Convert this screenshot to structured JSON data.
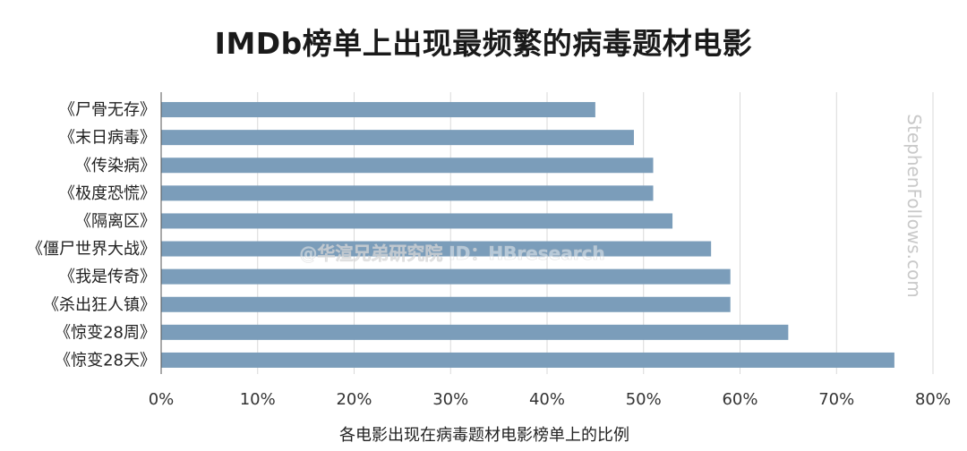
{
  "chart_data": {
    "type": "bar",
    "orientation": "horizontal",
    "title": "IMDb榜单上出现最频繁的病毒题材电影",
    "xlabel": "各电影出现在病毒题材电影榜单上的比例",
    "ylabel": "",
    "categories": [
      "《尸骨无存》",
      "《末日病毒》",
      "《传染病》",
      "《极度恐慌》",
      "《隔离区》",
      "《僵尸世界大战》",
      "《我是传奇》",
      "《杀出狂人镇》",
      "《惊变28周》",
      "《惊变28天》"
    ],
    "values": [
      45,
      49,
      51,
      51,
      53,
      57,
      59,
      59,
      65,
      76
    ],
    "xlim": [
      0,
      80
    ],
    "xticks": [
      0,
      10,
      20,
      30,
      40,
      50,
      60,
      70,
      80
    ],
    "xtick_labels": [
      "0%",
      "10%",
      "20%",
      "30%",
      "40%",
      "50%",
      "60%",
      "70%",
      "80%"
    ],
    "grid": "vertical",
    "bar_color": "#7b9dba",
    "watermarks": [
      "StephenFollows.com",
      "@华渲兄弟研究院 ID：HBresearch"
    ]
  }
}
